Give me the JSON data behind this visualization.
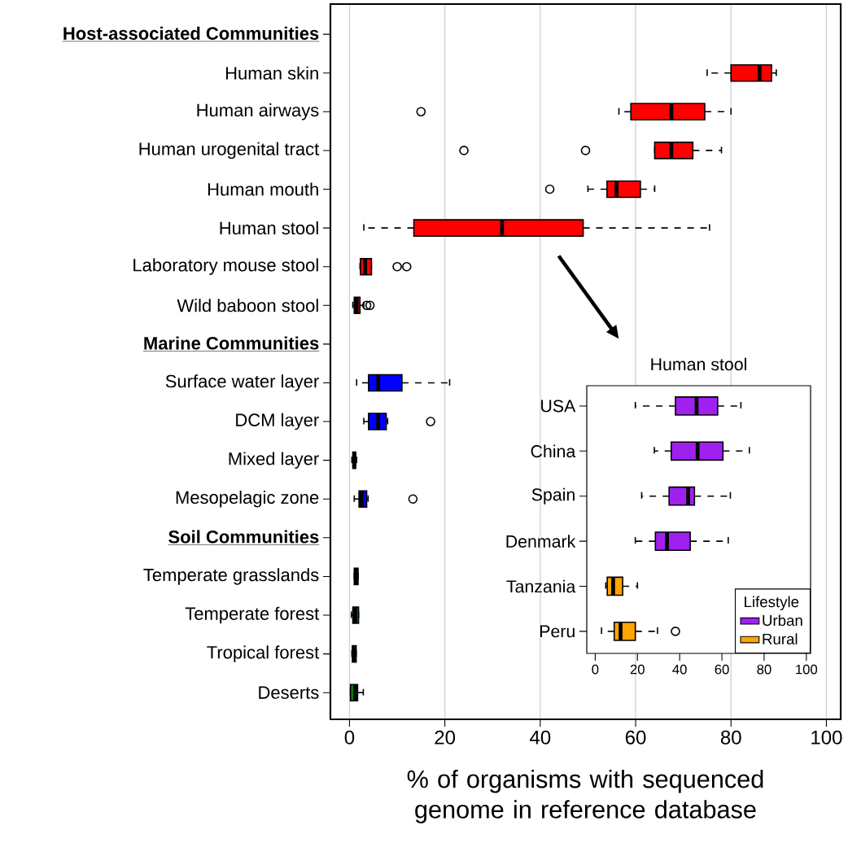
{
  "chart_data": [
    {
      "type": "box",
      "orientation": "horizontal",
      "categories": [
        "Host-associated Communities",
        "Human skin",
        "Human airways",
        "Human urogenital tract",
        "Human mouth",
        "Human stool",
        "Laboratory mouse stool",
        "Wild baboon stool",
        "Marine Communities",
        "Surface water layer",
        "DCM layer",
        "Mixed layer",
        "Mesopelagic zone",
        "Soil Communities",
        "Temperate grasslands",
        "Temperate forest",
        "Tropical forest",
        "Deserts"
      ],
      "boxes": [
        null,
        {
          "low": 75,
          "q1": 80,
          "median": 86,
          "q3": 88.5,
          "high": 89.5
        },
        {
          "low": 56.5,
          "q1": 59,
          "median": 67.5,
          "q3": 74.5,
          "high": 80,
          "outliers": [
            15
          ]
        },
        {
          "low": 64,
          "q1": 64,
          "median": 67.5,
          "q3": 72,
          "high": 78,
          "outliers": [
            24,
            49.5
          ]
        },
        {
          "low": 50,
          "q1": 54,
          "median": 56,
          "q3": 61,
          "high": 64,
          "outliers": [
            42
          ]
        },
        {
          "low": 3,
          "q1": 13.5,
          "median": 32,
          "q3": 49,
          "high": 75.5
        },
        {
          "low": 2.2,
          "q1": 2.3,
          "median": 3.3,
          "q3": 4.6,
          "high": 4.6,
          "outliers": [
            10,
            12
          ]
        },
        {
          "low": 0.7,
          "q1": 1,
          "median": 1.5,
          "q3": 2.2,
          "high": 3,
          "outliers": [
            3.6,
            4.3
          ]
        },
        null,
        {
          "low": 1.5,
          "q1": 4,
          "median": 6,
          "q3": 11,
          "high": 21
        },
        {
          "low": 3,
          "q1": 4,
          "median": 6,
          "q3": 7.7,
          "high": 8,
          "outliers": [
            17
          ]
        },
        {
          "low": 0.5,
          "q1": 0.7,
          "median": 1,
          "q3": 1.3,
          "high": 1.5
        },
        {
          "low": 1,
          "q1": 2,
          "median": 2.5,
          "q3": 3.6,
          "high": 3.9,
          "outliers": [
            13.3
          ]
        },
        null,
        {
          "low": 1,
          "q1": 1,
          "median": 1.4,
          "q3": 1.8,
          "high": 1.8
        },
        {
          "low": 0.4,
          "q1": 0.7,
          "median": 1.2,
          "q3": 1.9,
          "high": 1.9
        },
        {
          "low": 0.5,
          "q1": 0.6,
          "median": 1,
          "q3": 1.4,
          "high": 1.4
        },
        {
          "low": 0.2,
          "q1": 0.2,
          "median": 1.2,
          "q3": 1.7,
          "high": 2.9
        }
      ],
      "colors": [
        null,
        "#ff0000",
        "#ff0000",
        "#ff0000",
        "#ff0000",
        "#ff0000",
        "#ff0000",
        "#ff0000",
        null,
        "#0000ff",
        "#0000ff",
        "#0000ff",
        "#0000ff",
        null,
        "#008000",
        "#008000",
        "#008000",
        "#008000"
      ],
      "xlabel": "% of organisms with sequenced genome in reference database",
      "xlim": [
        -4,
        103
      ],
      "xticks": [
        0,
        20,
        40,
        60,
        80,
        100
      ],
      "grid": "x"
    },
    {
      "type": "box",
      "orientation": "horizontal",
      "title": "Human stool",
      "categories": [
        "USA",
        "China",
        "Spain",
        "Denmark",
        "Tanzania",
        "Peru"
      ],
      "series": [
        {
          "name": "Urban",
          "color": "#a020f0",
          "boxes": [
            {
              "low": 19,
              "q1": 38,
              "median": 48,
              "q3": 58,
              "high": 69
            },
            {
              "low": 28,
              "q1": 36,
              "median": 48.5,
              "q3": 60.5,
              "high": 73
            },
            {
              "low": 22,
              "q1": 35,
              "median": 44,
              "q3": 47,
              "high": 64
            },
            {
              "low": 19,
              "q1": 28.5,
              "median": 34,
              "q3": 45,
              "high": 63
            },
            null,
            null
          ]
        },
        {
          "name": "Rural",
          "color": "#ffa500",
          "boxes": [
            null,
            null,
            null,
            null,
            {
              "low": 5,
              "q1": 5.7,
              "median": 8.5,
              "q3": 13,
              "high": 20
            },
            {
              "low": 3,
              "q1": 9,
              "median": 12,
              "q3": 19,
              "high": 29.5,
              "outliers": [
                38
              ]
            }
          ]
        }
      ],
      "xlim": [
        -4,
        102
      ],
      "xticks": [
        0,
        20,
        40,
        60,
        80,
        100
      ],
      "legend": "bottom right",
      "legend_title": "Lifestyle"
    }
  ]
}
